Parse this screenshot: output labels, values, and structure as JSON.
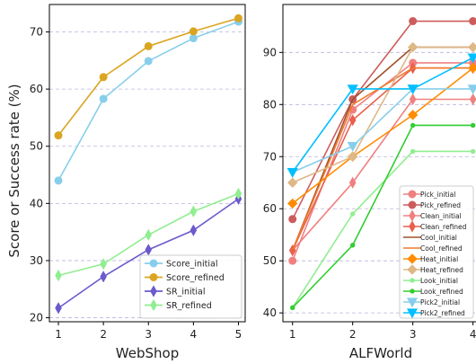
{
  "chart_data": [
    {
      "type": "line",
      "xlabel": "WebShop",
      "ylabel": "Score or Success rate (%)",
      "x": [
        1,
        2,
        3,
        4,
        5
      ],
      "xlim": [
        0.8,
        5.15
      ],
      "ylim": [
        19.3,
        74.8
      ],
      "yticks": [
        20,
        30,
        40,
        50,
        60,
        70
      ],
      "grid": "horizontal dashed",
      "legend_position": "lower-right",
      "series": [
        {
          "name": "Score_initial",
          "color": "#87ceeb",
          "marker": "circle",
          "values": [
            44.0,
            58.3,
            64.9,
            68.9,
            71.8
          ]
        },
        {
          "name": "Score_refined",
          "color": "#daa520",
          "marker": "circle",
          "values": [
            51.9,
            62.1,
            67.5,
            70.1,
            72.4
          ]
        },
        {
          "name": "SR_initial",
          "color": "#6a5acd",
          "marker": "thin_diamond",
          "values": [
            21.7,
            27.2,
            31.9,
            35.3,
            40.8
          ]
        },
        {
          "name": "SR_refined",
          "color": "#90ee90",
          "marker": "thin_diamond",
          "values": [
            27.4,
            29.4,
            34.5,
            38.6,
            41.7
          ]
        }
      ]
    },
    {
      "type": "line",
      "xlabel": "ALFWorld",
      "ylabel": "",
      "x": [
        1,
        2,
        3,
        4
      ],
      "xlim": [
        0.84,
        4.08
      ],
      "ylim": [
        38.3,
        99.2
      ],
      "yticks": [
        40,
        50,
        60,
        70,
        80,
        90
      ],
      "grid": "horizontal dashed",
      "legend_position": "lower-right",
      "series": [
        {
          "name": "Pick_initial",
          "color": "#f08080",
          "marker": "circle",
          "values": [
            50,
            79,
            88,
            88
          ]
        },
        {
          "name": "Pick_refined",
          "color": "#cd5c5c",
          "marker": "circle",
          "values": [
            58,
            81,
            96,
            96
          ]
        },
        {
          "name": "Clean_initial",
          "color": "#f08080",
          "marker": "thin_diamond",
          "values": [
            52,
            65,
            81,
            81
          ]
        },
        {
          "name": "Clean_refined",
          "color": "#e9604c",
          "marker": "thin_diamond",
          "values": [
            52,
            77,
            87,
            87
          ]
        },
        {
          "name": "Cool_initial",
          "color": "#a0522d",
          "marker": "none",
          "values": [
            52,
            81,
            91,
            91
          ]
        },
        {
          "name": "Cool_refined",
          "color": "#f07a2a",
          "marker": "none",
          "values": [
            52,
            80,
            87,
            87
          ]
        },
        {
          "name": "Heat_initial",
          "color": "#ff8c00",
          "marker": "diamond",
          "values": [
            61,
            70,
            78,
            87
          ]
        },
        {
          "name": "Heat_refined",
          "color": "#deb887",
          "marker": "diamond",
          "values": [
            65,
            70,
            91,
            91
          ]
        },
        {
          "name": "Look_initial",
          "color": "#90ee90",
          "marker": "point",
          "values": [
            41,
            59,
            71,
            71
          ]
        },
        {
          "name": "Look_refined",
          "color": "#32cd32",
          "marker": "point",
          "values": [
            41,
            53,
            76,
            76
          ]
        },
        {
          "name": "Pick2_initial",
          "color": "#87ceeb",
          "marker": "triangle_down",
          "values": [
            67,
            72,
            83,
            83
          ]
        },
        {
          "name": "Pick2_refined",
          "color": "#00bfff",
          "marker": "triangle_down",
          "values": [
            67,
            83,
            83,
            89
          ]
        }
      ]
    }
  ]
}
